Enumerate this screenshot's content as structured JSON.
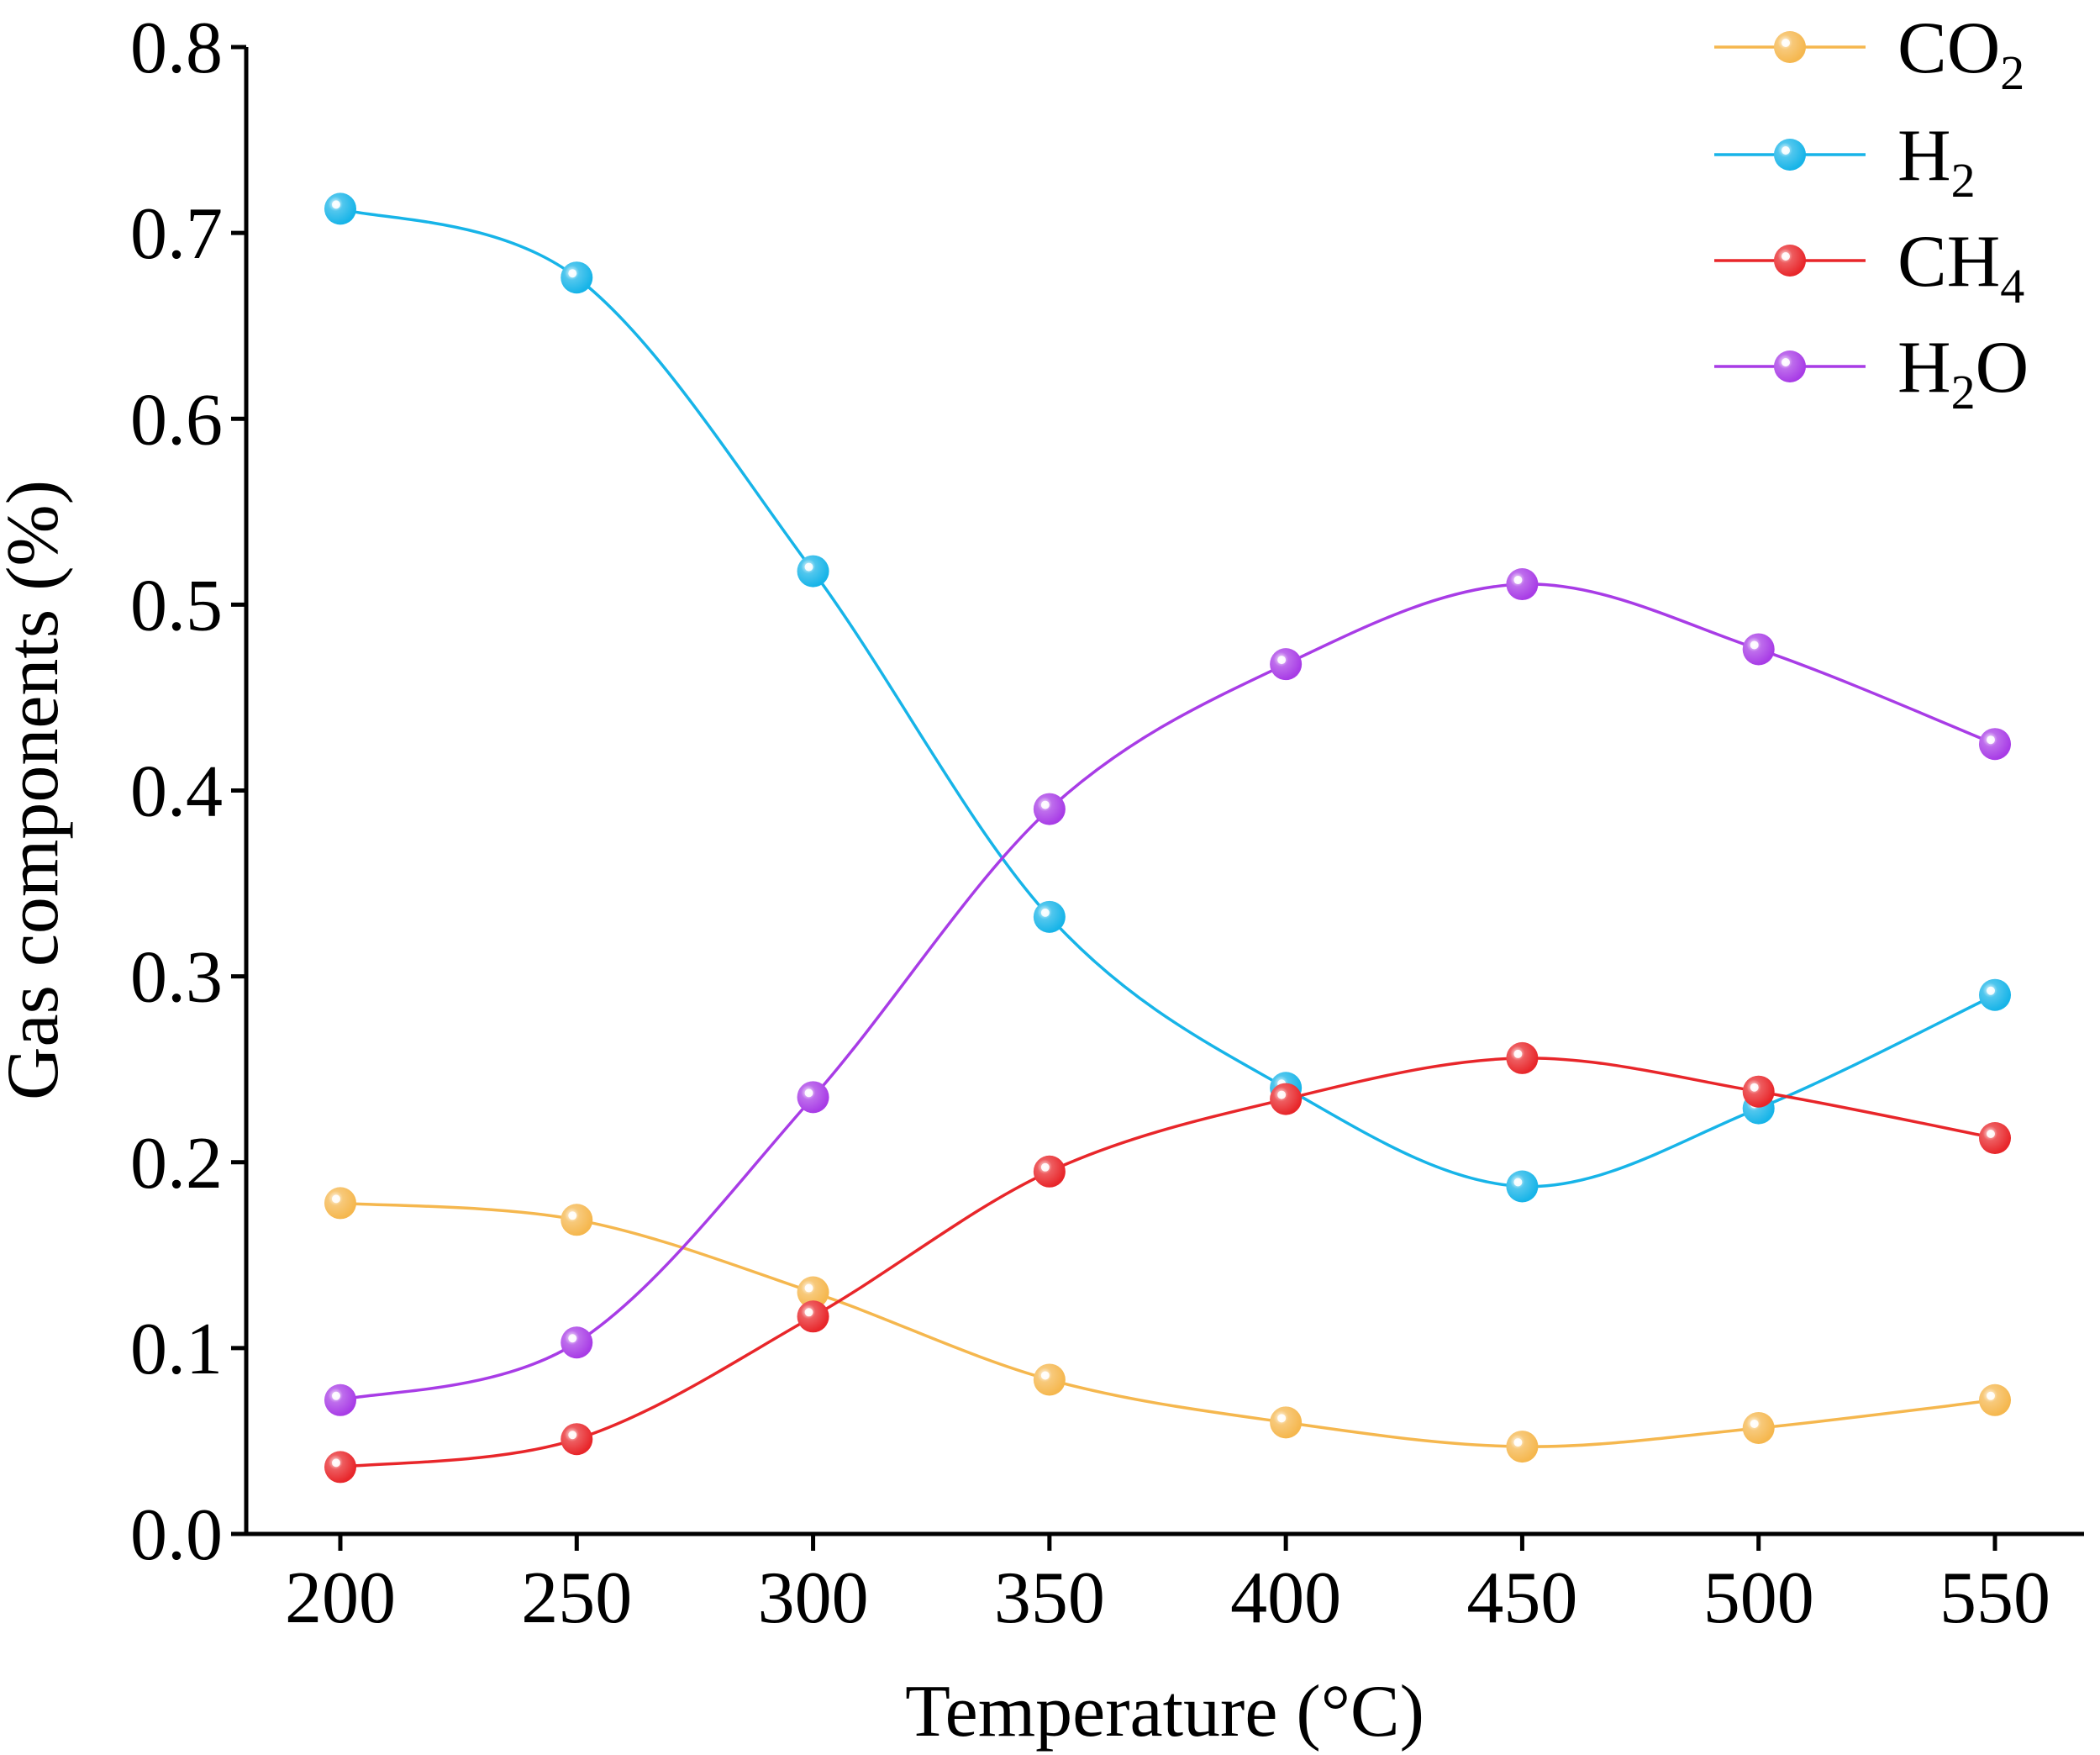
{
  "chart_data": {
    "type": "line",
    "title": "",
    "xlabel": "Temperature (°C)",
    "ylabel": "Gas components (%)",
    "xlim": [
      180,
      560
    ],
    "ylim": [
      0,
      0.8
    ],
    "x": [
      200,
      250,
      300,
      350,
      400,
      450,
      500,
      550
    ],
    "x_ticks": [
      "200",
      "250",
      "300",
      "350",
      "400",
      "450",
      "500",
      "550"
    ],
    "y_ticks": [
      "0.0",
      "0.1",
      "0.2",
      "0.3",
      "0.4",
      "0.5",
      "0.6",
      "0.7",
      "0.8"
    ],
    "legend_position": "top-right",
    "grid": false,
    "series": [
      {
        "name": "CO2",
        "legend_main": "CO",
        "legend_sub": "2",
        "legend_tail": "",
        "color": "#f5b74e",
        "values": [
          0.178,
          0.169,
          0.13,
          0.083,
          0.06,
          0.047,
          0.057,
          0.072
        ]
      },
      {
        "name": "H2",
        "legend_main": "H",
        "legend_sub": "2",
        "legend_tail": "",
        "color": "#17b4e8",
        "values": [
          0.713,
          0.676,
          0.518,
          0.332,
          0.24,
          0.187,
          0.229,
          0.29
        ]
      },
      {
        "name": "CH4",
        "legend_main": "CH",
        "legend_sub": "4",
        "legend_tail": "",
        "color": "#e8262a",
        "values": [
          0.036,
          0.051,
          0.117,
          0.195,
          0.234,
          0.256,
          0.238,
          0.213
        ]
      },
      {
        "name": "H2O",
        "legend_main": "H",
        "legend_sub": "2",
        "legend_tail": "O",
        "color": "#a83ce6",
        "values": [
          0.072,
          0.103,
          0.235,
          0.39,
          0.468,
          0.511,
          0.476,
          0.425
        ]
      }
    ]
  }
}
